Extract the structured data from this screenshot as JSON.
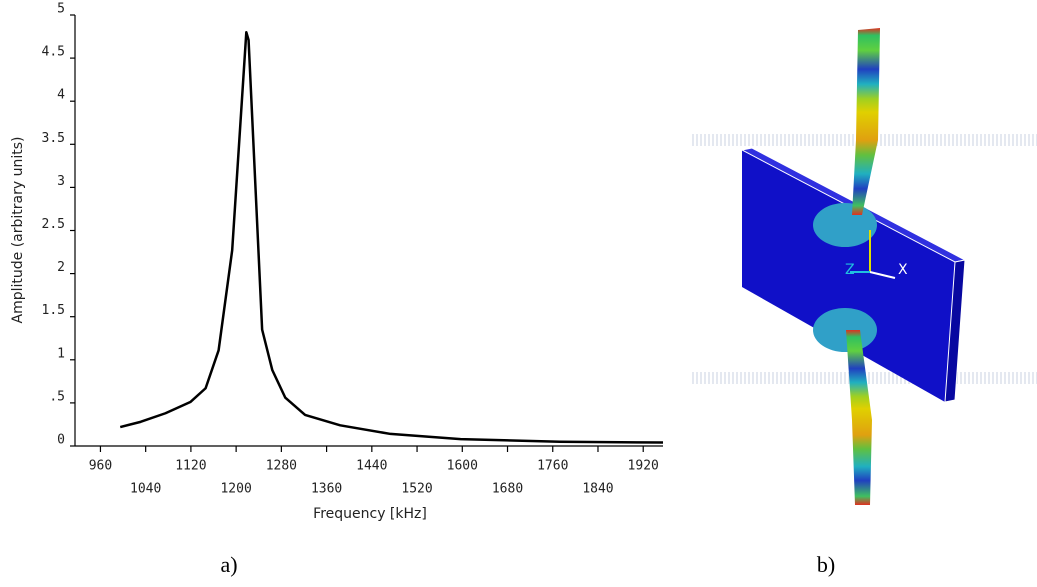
{
  "chart_data": {
    "type": "line",
    "x_label": "Frequency [kHz]",
    "y_label": "Amplitude (arbitrary units)",
    "xlim": [
      915,
      1955
    ],
    "ylim": [
      0,
      5
    ],
    "xticks": [
      960,
      1040,
      1120,
      1200,
      1280,
      1360,
      1440,
      1520,
      1600,
      1680,
      1760,
      1840,
      1920
    ],
    "yticks": [
      0,
      {
        "value": 0.5,
        "label": ".5"
      },
      1,
      1.5,
      2,
      2.5,
      3,
      3.5,
      4,
      4.5,
      5
    ],
    "grid": false,
    "series": [
      {
        "color": "#000000",
        "x": [
          995,
          1031,
          1075,
          1119,
          1146,
          1169,
          1193,
          1218,
          1222,
          1246,
          1264,
          1287,
          1322,
          1384,
          1473,
          1597,
          1773,
          1955
        ],
        "values": [
          0.22,
          0.28,
          0.38,
          0.51,
          0.67,
          1.11,
          2.27,
          4.8,
          4.71,
          1.35,
          0.88,
          0.56,
          0.36,
          0.24,
          0.14,
          0.08,
          0.05,
          0.04
        ]
      }
    ]
  },
  "captions": [
    "a)",
    "b)"
  ],
  "figure_b": {
    "axis_labels": [
      "Z",
      "X"
    ]
  }
}
